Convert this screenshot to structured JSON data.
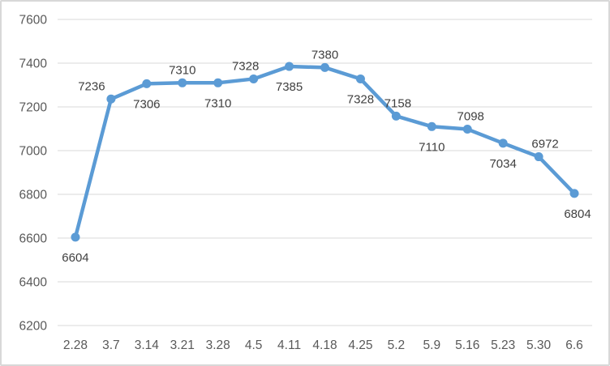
{
  "chart_data": {
    "type": "line",
    "title": "",
    "xlabel": "",
    "ylabel": "",
    "categories": [
      "2.28",
      "3.7",
      "3.14",
      "3.21",
      "3.28",
      "4.5",
      "4.11",
      "4.18",
      "4.25",
      "5.2",
      "5.9",
      "5.16",
      "5.23",
      "5.30",
      "6.6"
    ],
    "values": [
      6604,
      7236,
      7306,
      7310,
      7310,
      7328,
      7385,
      7380,
      7328,
      7158,
      7110,
      7098,
      7034,
      6972,
      6804
    ],
    "data_labels": [
      "6604",
      "7236",
      "7306",
      "7310",
      "7310",
      "7328",
      "7385",
      "7380",
      "7328",
      "7158",
      "7110",
      "7098",
      "7034",
      "6972",
      "6804"
    ],
    "data_label_positions": [
      "below",
      "above",
      "below",
      "above",
      "below",
      "above",
      "below",
      "above",
      "below",
      "above",
      "below",
      "above",
      "below",
      "above",
      "below"
    ],
    "data_label_dx": [
      0,
      -24,
      0,
      0,
      0,
      -10,
      0,
      0,
      0,
      2,
      0,
      4,
      0,
      8,
      4
    ],
    "ylim": [
      6200,
      7600
    ],
    "yticks": [
      "7600",
      "7400",
      "7200",
      "7000",
      "6800",
      "6600",
      "6400",
      "6200"
    ],
    "ytick_values": [
      7600,
      7400,
      7200,
      7000,
      6800,
      6600,
      6400,
      6200
    ],
    "grid": "horizontal",
    "legend": "none",
    "colors": {
      "series_line": "#5b9bd5",
      "marker_fill": "#5b9bd5",
      "gridline": "#d9d9d9",
      "axis_tick_text": "#595959",
      "data_label_text": "#404040",
      "background": "#ffffff",
      "frame_border": "#d8d8d8"
    }
  }
}
